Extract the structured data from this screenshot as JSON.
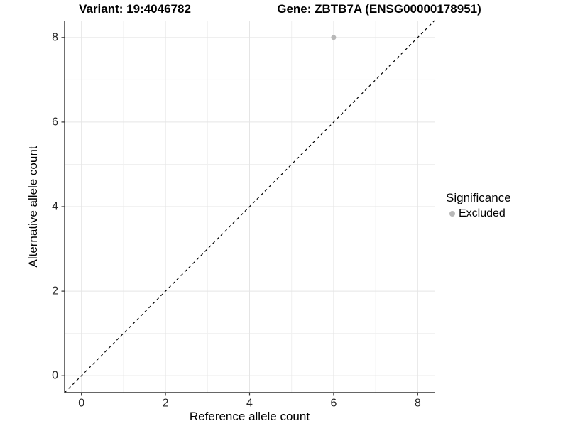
{
  "titles": {
    "variant": "Variant: 19:4046782",
    "gene": "Gene: ZBTB7A (ENSG00000178951)"
  },
  "colors": {
    "background": "#ffffff",
    "grid_major": "#e5e5e5",
    "grid_minor": "#f0f0f0",
    "axis_line": "#333333",
    "tick_text": "#262626",
    "reference_line": "#000000",
    "point_excluded": "#b8b8b8"
  },
  "chart_data": {
    "type": "scatter",
    "title_left": "Variant: 19:4046782",
    "title_right": "Gene: ZBTB7A (ENSG00000178951)",
    "xlabel": "Reference allele count",
    "ylabel": "Alternative allele count",
    "xlim": [
      -0.4,
      8.4
    ],
    "ylim": [
      -0.4,
      8.4
    ],
    "xticks": [
      0,
      2,
      4,
      6,
      8
    ],
    "yticks": [
      0,
      2,
      4,
      6,
      8
    ],
    "x_minor": [
      1,
      3,
      5,
      7
    ],
    "y_minor": [
      1,
      3,
      5,
      7
    ],
    "grid": true,
    "points": [
      {
        "x": 6,
        "y": 8,
        "series": "Excluded"
      }
    ],
    "reference_line": {
      "kind": "abline",
      "slope": 1,
      "intercept": 0,
      "style": "dashed"
    },
    "legend": {
      "title": "Significance",
      "position": "right",
      "entries": [
        {
          "label": "Excluded",
          "marker": "circle"
        }
      ]
    }
  }
}
